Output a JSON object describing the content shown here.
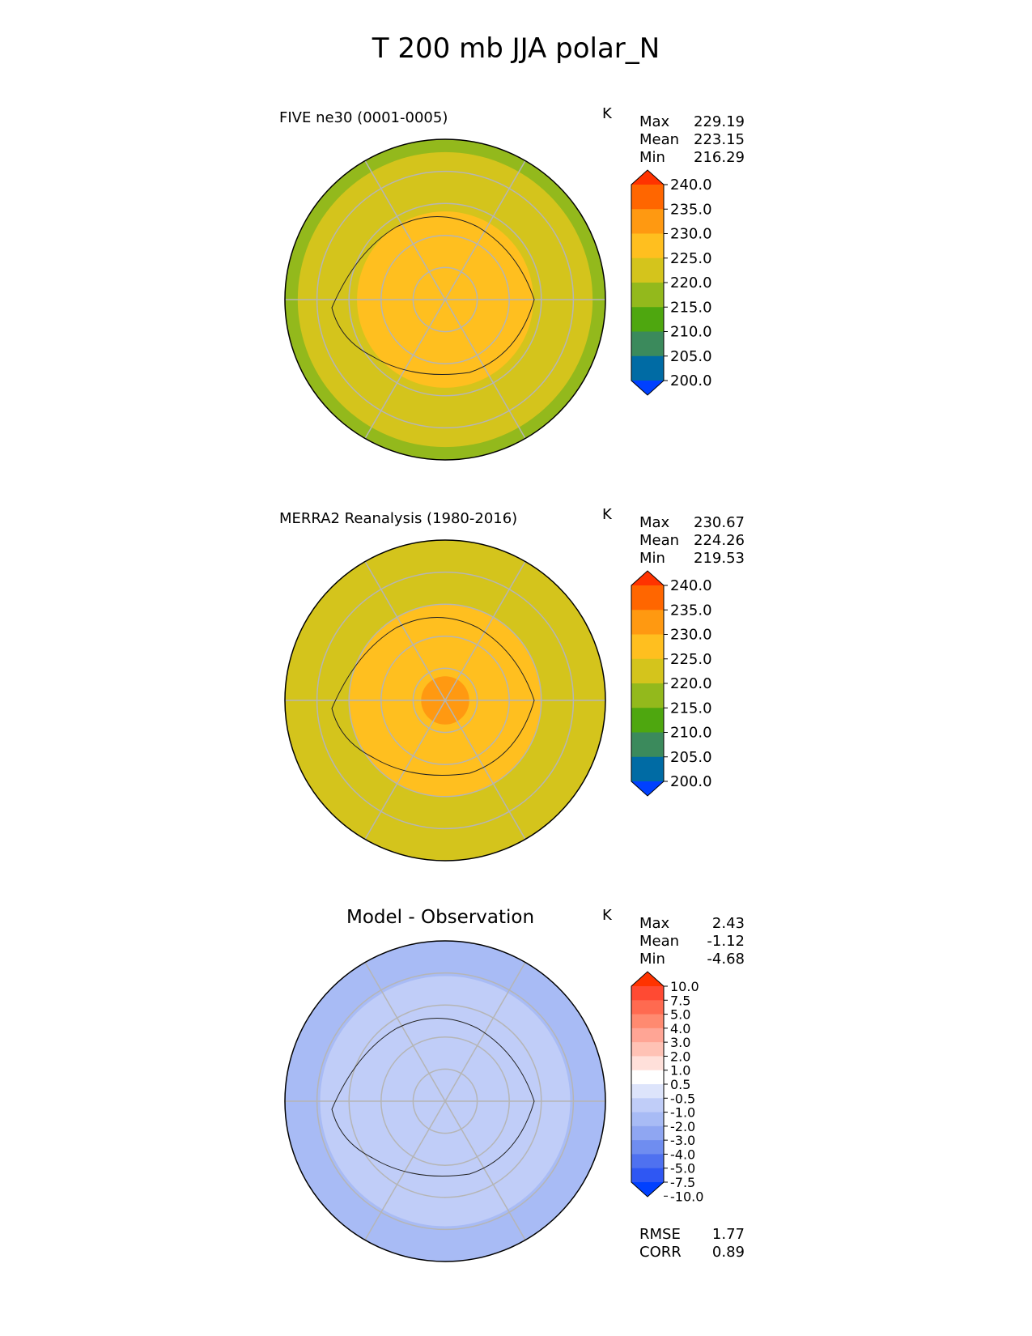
{
  "title": "T 200 mb JJA polar_N",
  "units": "K",
  "panels": [
    {
      "name": "test",
      "title": "FIVE ne30 (0001-0005)",
      "stats": [
        [
          "Max",
          "229.19"
        ],
        [
          "Mean",
          "223.15"
        ],
        [
          "Min",
          "216.29"
        ]
      ],
      "colors": [
        "#ff3300",
        "#ff6600",
        "#ff9911",
        "#ffbf1f",
        "#d4c41c",
        "#93b91c",
        "#4ea70f",
        "#3b8a5c",
        "#006ba4",
        "#0040ff"
      ],
      "ticks": [
        "240.0",
        "235.0",
        "230.0",
        "225.0",
        "220.0",
        "215.0",
        "210.0",
        "205.0",
        "200.0"
      ],
      "rings": [
        {
          "r": 1.0,
          "color": "#93b91c"
        },
        {
          "r": 0.92,
          "color": "#d4c41c"
        },
        {
          "r": 0.55,
          "color": "#ffbf1f"
        }
      ]
    },
    {
      "name": "ref",
      "title": "MERRA2 Reanalysis (1980-2016)",
      "stats": [
        [
          "Max",
          "230.67"
        ],
        [
          "Mean",
          "224.26"
        ],
        [
          "Min",
          "219.53"
        ]
      ],
      "colors": [
        "#ff3300",
        "#ff6600",
        "#ff9911",
        "#ffbf1f",
        "#d4c41c",
        "#93b91c",
        "#4ea70f",
        "#3b8a5c",
        "#006ba4",
        "#0040ff"
      ],
      "ticks": [
        "240.0",
        "235.0",
        "230.0",
        "225.0",
        "220.0",
        "215.0",
        "210.0",
        "205.0",
        "200.0"
      ],
      "rings": [
        {
          "r": 1.0,
          "color": "#d4c41c"
        },
        {
          "r": 0.6,
          "color": "#ffbf1f"
        },
        {
          "r": 0.15,
          "color": "#ff9911"
        }
      ]
    },
    {
      "name": "diff",
      "title": "Model - Observation",
      "stats": [
        [
          "Max",
          "2.43"
        ],
        [
          "Mean",
          "-1.12"
        ],
        [
          "Min",
          "-4.68"
        ]
      ],
      "colors": [
        "#ff3300",
        "#ff4a33",
        "#ff6a50",
        "#ff8a70",
        "#ffa595",
        "#ffc2b5",
        "#ffe0da",
        "#ffffff",
        "#dde4fb",
        "#c0cdf8",
        "#a8bbf5",
        "#8fa6f2",
        "#6f8df0",
        "#4f71f0",
        "#2f57f3",
        "#0040ff"
      ],
      "ticks": [
        "10.0",
        "7.5",
        "5.0",
        "4.0",
        "3.0",
        "2.0",
        "1.0",
        "0.5",
        "-0.5",
        "-1.0",
        "-2.0",
        "-3.0",
        "-4.0",
        "-5.0",
        "-7.5",
        "-10.0"
      ],
      "rings": [
        {
          "r": 1.0,
          "color": "#a8bbf5"
        },
        {
          "r": 0.78,
          "color": "#c0cdf8"
        },
        {
          "r": 0.35,
          "color": "#c0cdf8"
        }
      ]
    }
  ],
  "rmse": [
    [
      "RMSE",
      "1.77"
    ],
    [
      "CORR",
      "0.89"
    ]
  ]
}
